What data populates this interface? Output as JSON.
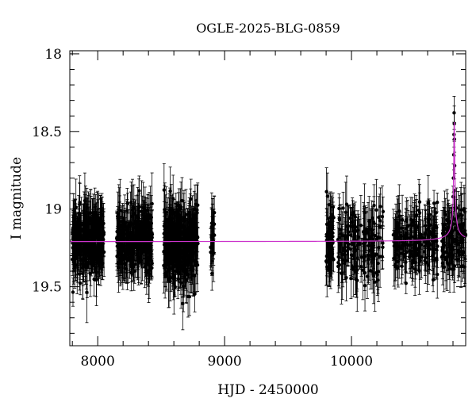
{
  "chart_data": {
    "type": "scatter",
    "title": "OGLE-2025-BLG-0859",
    "xlabel": "HJD - 2450000",
    "ylabel": "I magnitude",
    "xlim": [
      7780,
      10900
    ],
    "ylim": [
      19.88,
      17.98
    ],
    "y_inverted": true,
    "x_ticks": [
      8000,
      9000,
      10000
    ],
    "y_ticks": [
      18,
      18.5,
      19,
      19.5
    ],
    "x_tick_labels": [
      "8000",
      "9000",
      "10000"
    ],
    "y_tick_labels": [
      "18",
      "18.5",
      "19",
      "19.5"
    ],
    "grid": false,
    "colors": {
      "points": "#000000",
      "model": "#cc33cc"
    },
    "baseline_mag": 19.21,
    "seasons": [
      {
        "start": 7800,
        "end": 8050,
        "n": 320,
        "mag_mean": 19.2,
        "mag_sd": 0.1
      },
      {
        "start": 8150,
        "end": 8430,
        "n": 300,
        "mag_mean": 19.2,
        "mag_sd": 0.1
      },
      {
        "start": 8520,
        "end": 8790,
        "n": 380,
        "mag_mean": 19.22,
        "mag_sd": 0.12
      },
      {
        "start": 8890,
        "end": 8920,
        "n": 25,
        "mag_mean": 19.18,
        "mag_sd": 0.08
      },
      {
        "start": 9800,
        "end": 9860,
        "n": 60,
        "mag_mean": 19.22,
        "mag_sd": 0.12
      },
      {
        "start": 9890,
        "end": 10250,
        "n": 160,
        "mag_mean": 19.22,
        "mag_sd": 0.12
      },
      {
        "start": 10330,
        "end": 10680,
        "n": 190,
        "mag_mean": 19.2,
        "mag_sd": 0.1
      },
      {
        "start": 10710,
        "end": 10900,
        "n": 120,
        "mag_mean": 19.2,
        "mag_sd": 0.1
      }
    ],
    "event": {
      "t0": 10810,
      "peak_mag": 18.44,
      "width_days": 7,
      "points": [
        {
          "x": 10796,
          "y": 19.05
        },
        {
          "x": 10800,
          "y": 18.92
        },
        {
          "x": 10803,
          "y": 18.8
        },
        {
          "x": 10806,
          "y": 18.65
        },
        {
          "x": 10808,
          "y": 18.52
        },
        {
          "x": 10809,
          "y": 18.38
        },
        {
          "x": 10810,
          "y": 18.45
        },
        {
          "x": 10811,
          "y": 18.55
        },
        {
          "x": 10813,
          "y": 18.72
        },
        {
          "x": 10815,
          "y": 18.88
        },
        {
          "x": 10818,
          "y": 19.0
        },
        {
          "x": 10822,
          "y": 19.12
        }
      ]
    }
  }
}
